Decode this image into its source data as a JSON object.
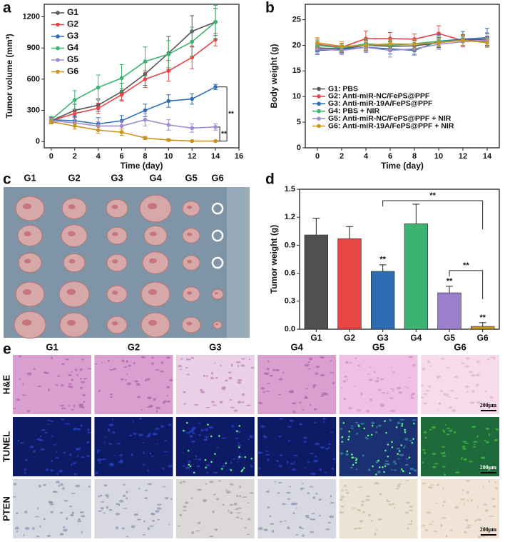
{
  "panel_labels": [
    "a",
    "b",
    "c",
    "d",
    "e"
  ],
  "chart_data": [
    {
      "type": "line",
      "x_label": "Time (day)",
      "y_label": "Tumor volume (mm³)",
      "x": [
        0,
        2,
        4,
        6,
        8,
        10,
        12,
        14
      ],
      "xlim": [
        -0.6,
        16
      ],
      "xticks": [
        0,
        2,
        4,
        6,
        8,
        10,
        12,
        14,
        16
      ],
      "ylim": [
        -60,
        1320
      ],
      "yticks": [
        0,
        300,
        600,
        900,
        1200
      ],
      "legend": "upper left",
      "series": [
        {
          "name": "G1",
          "color": "#555555",
          "values": [
            200,
            300,
            350,
            480,
            650,
            850,
            1060,
            1150
          ],
          "errors": [
            30,
            60,
            60,
            80,
            110,
            160,
            150,
            130
          ]
        },
        {
          "name": "G2",
          "color": "#e84545",
          "values": [
            200,
            270,
            320,
            450,
            600,
            680,
            810,
            980
          ],
          "errors": [
            25,
            40,
            50,
            60,
            80,
            100,
            110,
            60
          ]
        },
        {
          "name": "G3",
          "color": "#2e6db4",
          "values": [
            210,
            200,
            170,
            200,
            300,
            390,
            410,
            525
          ],
          "errors": [
            30,
            50,
            60,
            50,
            60,
            60,
            50,
            25
          ]
        },
        {
          "name": "G4",
          "color": "#3cb371",
          "values": [
            210,
            400,
            520,
            610,
            770,
            840,
            960,
            1150
          ],
          "errors": [
            30,
            90,
            120,
            130,
            140,
            130,
            140,
            160
          ]
        },
        {
          "name": "G5",
          "color": "#a08ccf",
          "values": [
            200,
            180,
            150,
            150,
            210,
            160,
            130,
            140
          ],
          "errors": [
            25,
            30,
            40,
            50,
            60,
            50,
            40,
            30
          ]
        },
        {
          "name": "G6",
          "color": "#c8961e",
          "values": [
            190,
            150,
            110,
            90,
            35,
            15,
            5,
            5
          ],
          "errors": [
            20,
            30,
            30,
            30,
            15,
            10,
            5,
            5
          ]
        }
      ],
      "annotations": [
        "**",
        "**"
      ]
    },
    {
      "type": "line",
      "x_label": "Time (day)",
      "y_label": "Body weight (g)",
      "x": [
        0,
        2,
        4,
        6,
        8,
        10,
        12,
        14
      ],
      "xlim": [
        -1,
        15
      ],
      "xticks": [
        0,
        2,
        4,
        6,
        8,
        10,
        12,
        14
      ],
      "ylim": [
        0,
        28
      ],
      "yticks": [
        0,
        5,
        10,
        15,
        20,
        25
      ],
      "legend": "center left",
      "series": [
        {
          "name": "G1: PBS",
          "color": "#555555",
          "values": [
            19.5,
            19.3,
            20.0,
            19.8,
            19.9,
            20.5,
            21.0,
            21.2
          ],
          "errors": [
            0.8,
            0.7,
            1.0,
            0.9,
            1.0,
            1.0,
            1.1,
            1.2
          ]
        },
        {
          "name": "G2: Anti-miR-NC/FePS@PPF",
          "color": "#e84545",
          "values": [
            20.2,
            19.6,
            21.3,
            21.3,
            21.2,
            22.3,
            20.9,
            20.8
          ],
          "errors": [
            1.0,
            0.8,
            1.5,
            1.2,
            1.0,
            1.5,
            1.0,
            1.0
          ]
        },
        {
          "name": "G3: Anti-miR-19A/FePS@PPF",
          "color": "#2e6db4",
          "values": [
            19.0,
            19.2,
            19.6,
            19.3,
            19.0,
            20.8,
            21.2,
            21.5
          ],
          "errors": [
            0.8,
            0.8,
            0.9,
            1.0,
            0.9,
            1.2,
            1.5,
            1.8
          ]
        },
        {
          "name": "G4: PBS + NIR",
          "color": "#3cb371",
          "values": [
            20.0,
            19.5,
            20.3,
            20.0,
            20.3,
            20.8,
            20.9,
            20.6
          ],
          "errors": [
            0.9,
            0.8,
            1.0,
            0.9,
            0.8,
            1.0,
            0.9,
            0.9
          ]
        },
        {
          "name": "G5: Anti-miR-NC/FePS@PPF + NIR",
          "color": "#a08ccf",
          "values": [
            19.3,
            19.0,
            19.6,
            19.0,
            19.3,
            20.2,
            20.7,
            21.0
          ],
          "errors": [
            0.9,
            0.8,
            1.0,
            1.3,
            1.0,
            1.0,
            1.0,
            1.2
          ]
        },
        {
          "name": "G6: Anti-miR-19A/FePS@PPF + NIR",
          "color": "#c8961e",
          "values": [
            20.5,
            19.8,
            20.0,
            20.3,
            20.2,
            20.5,
            21.0,
            20.5
          ],
          "errors": [
            1.0,
            0.9,
            0.8,
            0.9,
            0.9,
            0.8,
            1.0,
            0.9
          ]
        }
      ]
    },
    {
      "type": "bar",
      "y_label": "Tumor weight (g)",
      "categories": [
        "G1",
        "G2",
        "G3",
        "G4",
        "G5",
        "G6"
      ],
      "values": [
        1.01,
        0.97,
        0.62,
        1.13,
        0.39,
        0.03
      ],
      "errors": [
        0.18,
        0.13,
        0.07,
        0.21,
        0.07,
        0.04
      ],
      "colors": [
        "#505050",
        "#e84545",
        "#2e6db4",
        "#3cb371",
        "#9b7fcb",
        "#c8961e"
      ],
      "ylim": [
        0,
        1.5
      ],
      "yticks": [
        {
          "value": 0,
          "label": "0.0"
        },
        0.3,
        0.6,
        0.9,
        1.2,
        1.5
      ],
      "significance": [
        null,
        null,
        "**",
        null,
        "**",
        "**"
      ],
      "annotations": [
        "**",
        "**"
      ]
    }
  ],
  "photo": {
    "labels": [
      "G1",
      "G2",
      "G3",
      "G4",
      "G5",
      "G6"
    ]
  },
  "histology": {
    "columns": [
      "G1",
      "G2",
      "G3",
      "G4",
      "G5",
      "G6"
    ],
    "rows": [
      "H&E",
      "TUNEL",
      "PTEN"
    ],
    "scale_bars": [
      "200μm",
      "200μm",
      "200μm"
    ]
  }
}
